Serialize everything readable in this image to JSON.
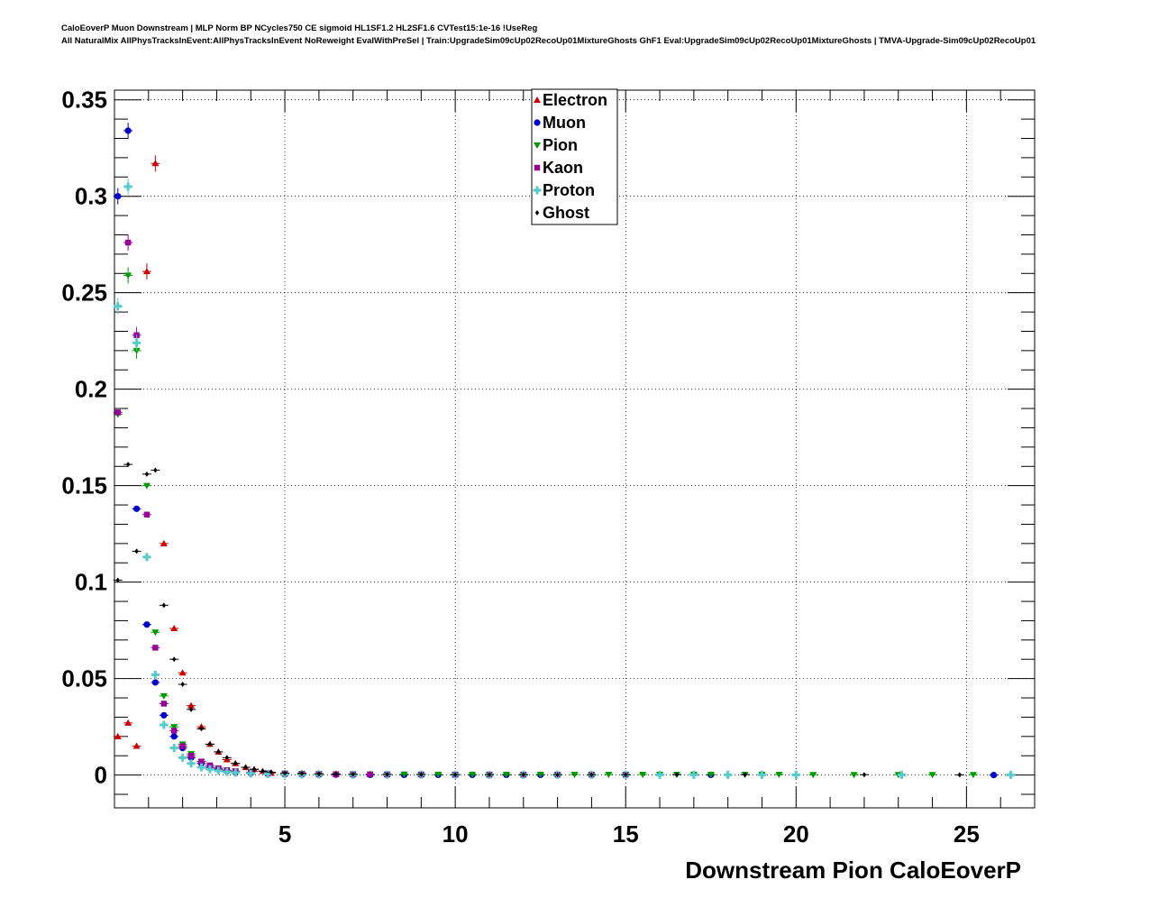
{
  "title": {
    "line1": "CaloEoverP Muon Downstream | MLP Norm BP NCycles750 CE sigmoid HL1SF1.2 HL2SF1.6 CVTest15:1e-16 !UseReg",
    "line2": "All NaturalMix AllPhysTracksInEvent:AllPhysTracksInEvent NoReweight EvalWithPreSel | Train:UpgradeSim09cUp02RecoUp01MixtureGhosts GhF1 Eval:UpgradeSim09cUp02RecoUp01MixtureGhosts | TMVA-Upgrade-Sim09cUp02RecoUp01"
  },
  "chart_data": {
    "type": "scatter",
    "xlabel": "Downstream Pion CaloEoverP",
    "ylabel": "",
    "xlim": [
      0,
      27
    ],
    "ylim": [
      -0.017,
      0.355
    ],
    "xticks": [
      "5",
      "10",
      "15",
      "20",
      "25"
    ],
    "yticks": [
      "0",
      "0.05",
      "0.1",
      "0.15",
      "0.2",
      "0.25",
      "0.3",
      "0.35"
    ],
    "grid": true,
    "legend_position": "top-center",
    "series": [
      {
        "name": "Electron",
        "color": "#cc0000",
        "marker": "triangle-up",
        "points": [
          [
            0.1,
            0.02
          ],
          [
            0.4,
            0.027
          ],
          [
            0.65,
            0.015
          ],
          [
            0.95,
            0.261
          ],
          [
            1.2,
            0.317
          ],
          [
            1.45,
            0.12
          ],
          [
            1.75,
            0.076
          ],
          [
            2.0,
            0.053
          ],
          [
            2.25,
            0.036
          ],
          [
            2.55,
            0.025
          ],
          [
            2.8,
            0.016
          ],
          [
            3.05,
            0.012
          ],
          [
            3.3,
            0.008
          ],
          [
            3.55,
            0.006
          ],
          [
            3.85,
            0.004
          ],
          [
            4.1,
            0.003
          ],
          [
            4.35,
            0.002
          ],
          [
            4.6,
            0.001
          ],
          [
            5,
            0.001
          ],
          [
            5.5,
            0.001
          ],
          [
            6,
            0.0008
          ],
          [
            6.5,
            0.0006
          ],
          [
            7,
            0.0005
          ],
          [
            7.5,
            0.0004
          ],
          [
            8,
            0.0003
          ],
          [
            9,
            0.0003
          ],
          [
            10,
            0.0002
          ],
          [
            11,
            0.0002
          ],
          [
            12,
            0.0001
          ]
        ]
      },
      {
        "name": "Muon",
        "color": "#0000cc",
        "marker": "circle",
        "points": [
          [
            0.1,
            0.3
          ],
          [
            0.4,
            0.334
          ],
          [
            0.65,
            0.138
          ],
          [
            0.95,
            0.078
          ],
          [
            1.2,
            0.048
          ],
          [
            1.45,
            0.031
          ],
          [
            1.75,
            0.02
          ],
          [
            2.0,
            0.014
          ],
          [
            2.25,
            0.009
          ],
          [
            2.55,
            0.006
          ],
          [
            2.8,
            0.004
          ],
          [
            3.05,
            0.003
          ],
          [
            3.3,
            0.002
          ],
          [
            3.55,
            0.0015
          ],
          [
            4,
            0.001
          ],
          [
            4.5,
            0.0006
          ],
          [
            5,
            0.0004
          ],
          [
            5.5,
            0.0003
          ],
          [
            6,
            0.0002
          ],
          [
            6.5,
            0.0002
          ],
          [
            7,
            0.0001
          ],
          [
            7.5,
            0.0001
          ],
          [
            8,
            0.0001
          ],
          [
            8.5,
            0.0001
          ],
          [
            9,
            0.0001
          ],
          [
            9.5,
            0.0001
          ],
          [
            10,
            0.0001
          ],
          [
            10.5,
            0.0001
          ],
          [
            11,
            0.0001
          ],
          [
            11.5,
            0.0001
          ],
          [
            12,
            0.0001
          ],
          [
            12.5,
            0.0001
          ],
          [
            13,
            0.0001
          ],
          [
            14,
            0.0001
          ],
          [
            15,
            0.0001
          ],
          [
            17.5,
            0.0001
          ],
          [
            25.8,
            0
          ]
        ]
      },
      {
        "name": "Pion",
        "color": "#009900",
        "marker": "triangle-down",
        "points": [
          [
            0.1,
            0.187
          ],
          [
            0.4,
            0.259
          ],
          [
            0.65,
            0.22
          ],
          [
            0.95,
            0.15
          ],
          [
            1.2,
            0.074
          ],
          [
            1.45,
            0.041
          ],
          [
            1.75,
            0.025
          ],
          [
            2.0,
            0.016
          ],
          [
            2.25,
            0.011
          ],
          [
            2.55,
            0.007
          ],
          [
            2.8,
            0.005
          ],
          [
            3.05,
            0.0035
          ],
          [
            3.3,
            0.0025
          ],
          [
            3.55,
            0.002
          ],
          [
            4,
            0.0015
          ],
          [
            4.5,
            0.001
          ],
          [
            5,
            0.0008
          ],
          [
            5.5,
            0.0007
          ],
          [
            6,
            0.0006
          ],
          [
            6.5,
            0.0005
          ],
          [
            7,
            0.0005
          ],
          [
            7.5,
            0.0004
          ],
          [
            8,
            0.0004
          ],
          [
            8.5,
            0.0004
          ],
          [
            9,
            0.0003
          ],
          [
            9.5,
            0.0003
          ],
          [
            10,
            0.0003
          ],
          [
            10.5,
            0.0003
          ],
          [
            11,
            0.0003
          ],
          [
            11.5,
            0.0003
          ],
          [
            12,
            0.0003
          ],
          [
            12.5,
            0.0003
          ],
          [
            13,
            0.0003
          ],
          [
            13.5,
            0.0003
          ],
          [
            14,
            0.0003
          ],
          [
            14.5,
            0.0003
          ],
          [
            15,
            0.0003
          ],
          [
            15.5,
            0.0003
          ],
          [
            16,
            0.0003
          ],
          [
            16.5,
            0.0003
          ],
          [
            17,
            0.0003
          ],
          [
            17.5,
            0.0003
          ],
          [
            18.5,
            0.0003
          ],
          [
            19,
            0.0003
          ],
          [
            19.5,
            0.0003
          ],
          [
            20.5,
            0.0002
          ],
          [
            21.7,
            0.0002
          ],
          [
            23,
            0.0002
          ],
          [
            24,
            0.0002
          ],
          [
            25.2,
            0.0002
          ]
        ]
      },
      {
        "name": "Kaon",
        "color": "#990099",
        "marker": "square",
        "points": [
          [
            0.1,
            0.188
          ],
          [
            0.4,
            0.276
          ],
          [
            0.65,
            0.228
          ],
          [
            0.95,
            0.135
          ],
          [
            1.2,
            0.066
          ],
          [
            1.45,
            0.037
          ],
          [
            1.75,
            0.023
          ],
          [
            2.0,
            0.015
          ],
          [
            2.25,
            0.01
          ],
          [
            2.55,
            0.007
          ],
          [
            2.8,
            0.005
          ],
          [
            3.05,
            0.0035
          ],
          [
            3.3,
            0.0025
          ],
          [
            3.55,
            0.002
          ],
          [
            4,
            0.0013
          ],
          [
            4.5,
            0.001
          ],
          [
            5,
            0.0008
          ],
          [
            5.5,
            0.0006
          ],
          [
            6,
            0.0005
          ],
          [
            6.5,
            0.0004
          ],
          [
            7,
            0.0004
          ],
          [
            7.5,
            0.0003
          ],
          [
            8,
            0.0003
          ],
          [
            9,
            0.0003
          ],
          [
            10,
            0.0002
          ],
          [
            11,
            0.0002
          ],
          [
            12,
            0.0002
          ],
          [
            13,
            0.0002
          ],
          [
            14,
            0.0002
          ],
          [
            15,
            0.0002
          ]
        ]
      },
      {
        "name": "Proton",
        "color": "#55cccc",
        "marker": "cross",
        "points": [
          [
            0.1,
            0.243
          ],
          [
            0.4,
            0.305
          ],
          [
            0.65,
            0.224
          ],
          [
            0.95,
            0.113
          ],
          [
            1.2,
            0.052
          ],
          [
            1.45,
            0.026
          ],
          [
            1.75,
            0.014
          ],
          [
            2.0,
            0.009
          ],
          [
            2.25,
            0.006
          ],
          [
            2.55,
            0.004
          ],
          [
            2.8,
            0.003
          ],
          [
            3.05,
            0.0022
          ],
          [
            3.3,
            0.0016
          ],
          [
            3.55,
            0.0012
          ],
          [
            4,
            0.0008
          ],
          [
            4.5,
            0.0006
          ],
          [
            5,
            0.0004
          ],
          [
            5.5,
            0.0003
          ],
          [
            6,
            0.0003
          ],
          [
            7,
            0.0002
          ],
          [
            8,
            0.0002
          ],
          [
            9,
            0.0002
          ],
          [
            10,
            0.0002
          ],
          [
            11,
            0.0001
          ],
          [
            12,
            0.0001
          ],
          [
            13,
            0.0001
          ],
          [
            14,
            0.0001
          ],
          [
            15,
            0.0001
          ],
          [
            16,
            0.0001
          ],
          [
            17,
            0.0001
          ],
          [
            18,
            0.0001
          ],
          [
            19,
            0.0001
          ],
          [
            20,
            0.0001
          ],
          [
            23.1,
            0.0001
          ],
          [
            26.3,
            0.0001
          ]
        ]
      },
      {
        "name": "Ghost",
        "color": "#000000",
        "marker": "diamond",
        "points": [
          [
            0.1,
            0.101
          ],
          [
            0.4,
            0.161
          ],
          [
            0.65,
            0.116
          ],
          [
            0.95,
            0.156
          ],
          [
            1.2,
            0.158
          ],
          [
            1.45,
            0.088
          ],
          [
            1.75,
            0.06
          ],
          [
            2.0,
            0.047
          ],
          [
            2.25,
            0.034
          ],
          [
            2.55,
            0.024
          ],
          [
            2.8,
            0.016
          ],
          [
            3.05,
            0.012
          ],
          [
            3.3,
            0.009
          ],
          [
            3.55,
            0.006
          ],
          [
            3.85,
            0.004
          ],
          [
            4.1,
            0.003
          ],
          [
            4.35,
            0.002
          ],
          [
            4.6,
            0.0015
          ],
          [
            5,
            0.001
          ],
          [
            5.5,
            0.0008
          ],
          [
            6,
            0.0006
          ],
          [
            6.5,
            0.0005
          ],
          [
            7,
            0.0004
          ],
          [
            8,
            0.0003
          ],
          [
            9,
            0.0003
          ],
          [
            10,
            0.0002
          ],
          [
            11,
            0.0002
          ],
          [
            12,
            0.0002
          ],
          [
            13,
            0.0002
          ],
          [
            14,
            0.0002
          ],
          [
            15,
            0.0002
          ],
          [
            16.5,
            0.0002
          ],
          [
            18.5,
            0.0002
          ],
          [
            22,
            0.0002
          ],
          [
            24.8,
            0.0001
          ]
        ]
      }
    ]
  }
}
